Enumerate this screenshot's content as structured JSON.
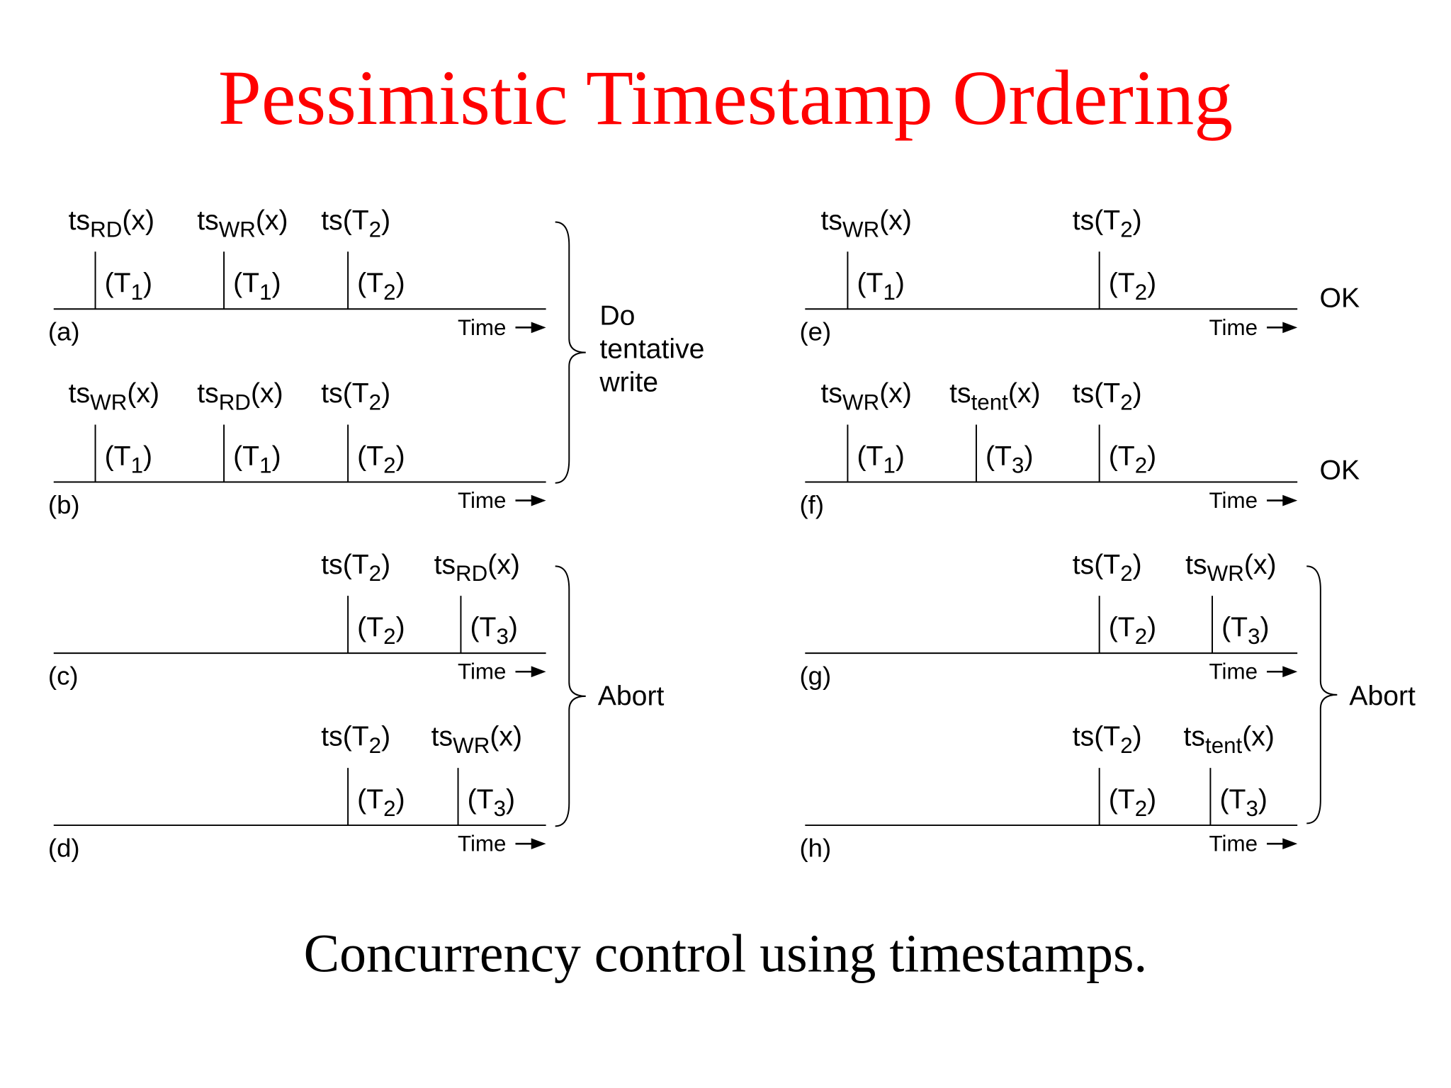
{
  "title": "Pessimistic Timestamp Ordering",
  "caption": "Concurrency control using timestamps.",
  "panels": [
    {
      "label": "(a)",
      "time": "Time",
      "events": [
        {
          "top": {
            "base": "ts",
            "sub": "RD",
            "tail": "(x)"
          },
          "bottom": {
            "base": "(T",
            "sub": "1",
            "tail": ")"
          }
        },
        {
          "top": {
            "base": "ts",
            "sub": "WR",
            "tail": "(x)"
          },
          "bottom": {
            "base": "(T",
            "sub": "1",
            "tail": ")"
          }
        },
        {
          "top": {
            "base": "ts(T",
            "sub": "2",
            "tail": ")"
          },
          "bottom": {
            "base": "(T",
            "sub": "2",
            "tail": ")"
          }
        }
      ]
    },
    {
      "label": "(b)",
      "time": "Time",
      "events": [
        {
          "top": {
            "base": "ts",
            "sub": "WR",
            "tail": "(x)"
          },
          "bottom": {
            "base": "(T",
            "sub": "1",
            "tail": ")"
          }
        },
        {
          "top": {
            "base": "ts",
            "sub": "RD",
            "tail": "(x)"
          },
          "bottom": {
            "base": "(T",
            "sub": "1",
            "tail": ")"
          }
        },
        {
          "top": {
            "base": "ts(T",
            "sub": "2",
            "tail": ")"
          },
          "bottom": {
            "base": "(T",
            "sub": "2",
            "tail": ")"
          }
        }
      ]
    },
    {
      "label": "(c)",
      "time": "Time",
      "events": [
        {
          "top": {
            "base": "ts(T",
            "sub": "2",
            "tail": ")"
          },
          "bottom": {
            "base": "(T",
            "sub": "2",
            "tail": ")"
          }
        },
        {
          "top": {
            "base": "ts",
            "sub": "RD",
            "tail": "(x)"
          },
          "bottom": {
            "base": "(T",
            "sub": "3",
            "tail": ")"
          }
        }
      ]
    },
    {
      "label": "(d)",
      "time": "Time",
      "events": [
        {
          "top": {
            "base": "ts(T",
            "sub": "2",
            "tail": ")"
          },
          "bottom": {
            "base": "(T",
            "sub": "2",
            "tail": ")"
          }
        },
        {
          "top": {
            "base": "ts",
            "sub": "WR",
            "tail": "(x)"
          },
          "bottom": {
            "base": "(T",
            "sub": "3",
            "tail": ")"
          }
        }
      ]
    },
    {
      "label": "(e)",
      "time": "Time",
      "events": [
        {
          "top": {
            "base": "ts",
            "sub": "WR",
            "tail": "(x)"
          },
          "bottom": {
            "base": "(T",
            "sub": "1",
            "tail": ")"
          }
        },
        {
          "top": {
            "base": "ts(T",
            "sub": "2",
            "tail": ")"
          },
          "bottom": {
            "base": "(T",
            "sub": "2",
            "tail": ")"
          }
        }
      ]
    },
    {
      "label": "(f)",
      "time": "Time",
      "events": [
        {
          "top": {
            "base": "ts",
            "sub": "WR",
            "tail": "(x)"
          },
          "bottom": {
            "base": "(T",
            "sub": "1",
            "tail": ")"
          }
        },
        {
          "top": {
            "base": "ts",
            "sub": "tent",
            "tail": "(x)"
          },
          "bottom": {
            "base": "(T",
            "sub": "3",
            "tail": ")"
          }
        },
        {
          "top": {
            "base": "ts(T",
            "sub": "2",
            "tail": ")"
          },
          "bottom": {
            "base": "(T",
            "sub": "2",
            "tail": ")"
          }
        }
      ]
    },
    {
      "label": "(g)",
      "time": "Time",
      "events": [
        {
          "top": {
            "base": "ts(T",
            "sub": "2",
            "tail": ")"
          },
          "bottom": {
            "base": "(T",
            "sub": "2",
            "tail": ")"
          }
        },
        {
          "top": {
            "base": "ts",
            "sub": "WR",
            "tail": "(x)"
          },
          "bottom": {
            "base": "(T",
            "sub": "3",
            "tail": ")"
          }
        }
      ]
    },
    {
      "label": "(h)",
      "time": "Time",
      "events": [
        {
          "top": {
            "base": "ts(T",
            "sub": "2",
            "tail": ")"
          },
          "bottom": {
            "base": "(T",
            "sub": "2",
            "tail": ")"
          }
        },
        {
          "top": {
            "base": "ts",
            "sub": "tent",
            "tail": "(x)"
          },
          "bottom": {
            "base": "(T",
            "sub": "3",
            "tail": ")"
          }
        }
      ]
    }
  ],
  "braces": [
    {
      "lines": [
        "Do",
        "tentative",
        "write"
      ]
    },
    {
      "lines": [
        "Abort"
      ]
    },
    {
      "lines": [
        "Abort"
      ]
    }
  ],
  "results": [
    "OK",
    "OK"
  ]
}
